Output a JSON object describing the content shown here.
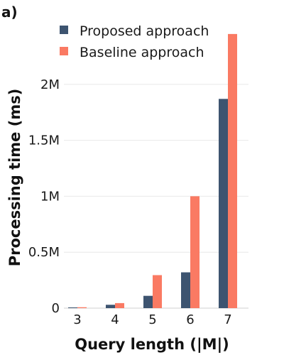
{
  "chart_data": {
    "type": "bar",
    "panel_label": "a)",
    "categories": [
      "3",
      "4",
      "5",
      "6",
      "7"
    ],
    "series": [
      {
        "name": "Proposed approach",
        "color": "#3d5470",
        "values": [
          5000,
          30000,
          110000,
          320000,
          1870000
        ]
      },
      {
        "name": "Baseline approach",
        "color": "#fa7a63",
        "values": [
          8000,
          45000,
          295000,
          1000000,
          2450000
        ]
      }
    ],
    "xlabel": "Query length (|M|)",
    "ylabel": "Processing time (ms)",
    "ylim": [
      0,
      2500000
    ],
    "yticks": [
      0,
      500000,
      1000000,
      1500000,
      2000000
    ],
    "ytick_labels": [
      "0",
      "0.5M",
      "1M",
      "1.5M",
      "2M"
    ],
    "grid": true,
    "legend_position": "top"
  }
}
